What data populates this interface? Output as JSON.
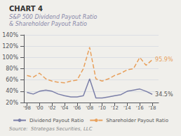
{
  "chart_data": {
    "type": "line",
    "title": "CHART 4",
    "subtitle": "S&P 500 Dividend Payout Ratio\n& Shareholder Payout Ratio",
    "source": "Source:  Strategas Securities, LLC",
    "x": [
      1998,
      1999,
      2000,
      2001,
      2002,
      2003,
      2004,
      2005,
      2006,
      2007,
      2008,
      2009,
      2010,
      2011,
      2012,
      2013,
      2014,
      2015,
      2016,
      2017,
      2018
    ],
    "series": [
      {
        "name": "Dividend Payout Ratio",
        "color": "#7b7fa8",
        "line_style": "solid",
        "values": [
          38,
          35,
          40,
          42,
          40,
          35,
          32,
          30,
          30,
          32,
          62,
          28,
          28,
          30,
          32,
          34,
          40,
          42,
          44,
          40,
          34.5
        ]
      },
      {
        "name": "Shareholder Payout Ratio",
        "color": "#e8a05c",
        "line_style": "dashed",
        "values": [
          68,
          65,
          72,
          62,
          58,
          56,
          55,
          58,
          60,
          80,
          118,
          62,
          58,
          62,
          68,
          72,
          78,
          80,
          100,
          86,
          95.9
        ]
      }
    ],
    "xlim": [
      1997.5,
      2019.0
    ],
    "xticks": [
      {
        "value": 1998,
        "label": "'98"
      },
      {
        "value": 2000,
        "label": "'00"
      },
      {
        "value": 2002,
        "label": "'02"
      },
      {
        "value": 2004,
        "label": "'04"
      },
      {
        "value": 2006,
        "label": "'06"
      },
      {
        "value": 2008,
        "label": "'08"
      },
      {
        "value": 2010,
        "label": "'10"
      },
      {
        "value": 2012,
        "label": "'12"
      },
      {
        "value": 2014,
        "label": "'14"
      },
      {
        "value": 2016,
        "label": "'16"
      },
      {
        "value": 2018,
        "label": "'18"
      }
    ],
    "ylim": [
      20,
      140
    ],
    "yticks": [
      {
        "value": 20,
        "label": "20%"
      },
      {
        "value": 40,
        "label": "40%"
      },
      {
        "value": 60,
        "label": "60%"
      },
      {
        "value": 80,
        "label": "80%"
      },
      {
        "value": 100,
        "label": "100%"
      },
      {
        "value": 120,
        "label": "120%"
      },
      {
        "value": 140,
        "label": "140%"
      }
    ],
    "grid": true,
    "legend": "bottom",
    "annotations": [
      {
        "text": "95.9%",
        "x": 2018,
        "y": 95.9,
        "color": "#e8a05c"
      },
      {
        "text": "34.5%",
        "x": 2018,
        "y": 34.5,
        "color": "#555555"
      }
    ]
  }
}
